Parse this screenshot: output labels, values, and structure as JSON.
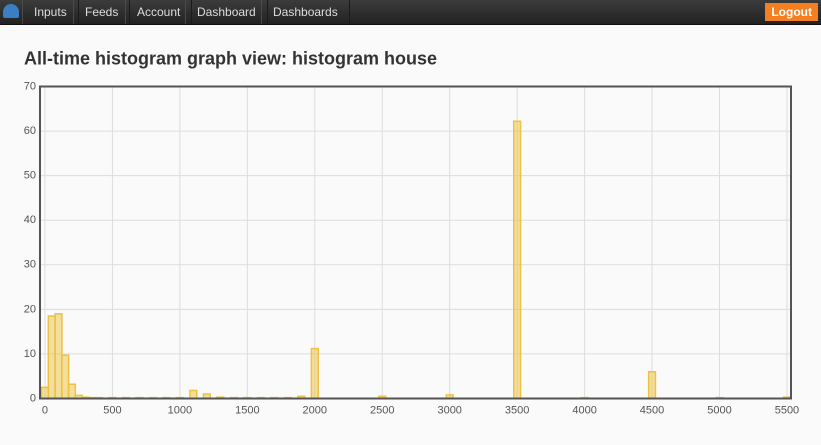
{
  "nav": {
    "items": [
      "Inputs",
      "Feeds",
      "Account",
      "Dashboard",
      "Dashboards"
    ],
    "logout": "Logout"
  },
  "chart_data": {
    "type": "bar",
    "title": "All-time histogram graph view: histogram house",
    "x": [
      0,
      50,
      100,
      150,
      200,
      250,
      300,
      350,
      400,
      500,
      600,
      700,
      800,
      900,
      1000,
      1100,
      1200,
      1300,
      1400,
      1500,
      1600,
      1700,
      1800,
      1900,
      2000,
      2500,
      3000,
      3500,
      4000,
      4500,
      5000,
      5500
    ],
    "values": [
      2.5,
      18.5,
      19,
      9.7,
      3.2,
      0.7,
      0.3,
      0.2,
      0.2,
      0.2,
      0.2,
      0.2,
      0.2,
      0.2,
      0.2,
      1.8,
      1,
      0.3,
      0.2,
      0.2,
      0.2,
      0.2,
      0.2,
      0.5,
      11.2,
      0.5,
      0.8,
      62.2,
      0.2,
      6,
      0.2,
      0.3
    ],
    "color": "#edc240",
    "xlim": [
      -37,
      5530
    ],
    "ylim": [
      0,
      70
    ],
    "xticks": [
      0,
      500,
      1000,
      1500,
      2000,
      2500,
      3000,
      3500,
      4000,
      4500,
      5000,
      5500
    ],
    "yticks": [
      0,
      10,
      20,
      30,
      40,
      50,
      60,
      70
    ],
    "grid": true
  }
}
